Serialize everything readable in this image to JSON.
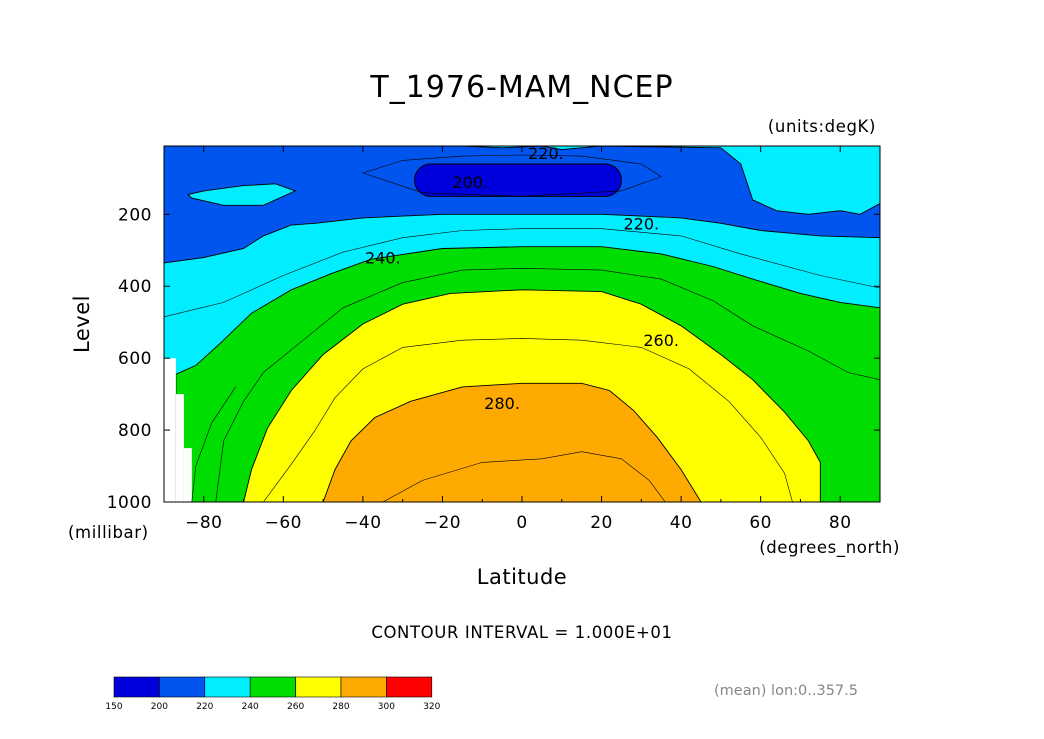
{
  "chart_data": {
    "type": "contour",
    "title": "T_1976-MAM_NCEP",
    "units_label": "(units:degK)",
    "xlabel": "Latitude",
    "x_units_label": "(degrees_north)",
    "ylabel": "Level",
    "y_units_label": "(millibar)",
    "x_range": [
      -90,
      90
    ],
    "y_range": [
      1000,
      10
    ],
    "y_axis_inverted": true,
    "x_ticks": [
      -80,
      -60,
      -40,
      -20,
      0,
      20,
      40,
      60,
      80
    ],
    "x_tick_labels": [
      "−80",
      "−60",
      "−40",
      "−20",
      "0",
      "20",
      "40",
      "60",
      "80"
    ],
    "y_ticks": [
      200,
      400,
      600,
      800,
      1000
    ],
    "y_tick_labels": [
      "200",
      "400",
      "600",
      "800",
      "1000"
    ],
    "contour_interval_text": "CONTOUR INTERVAL = 1.000E+01",
    "contour_labels": [
      {
        "text": "220.",
        "lat": 6,
        "lev": 30
      },
      {
        "text": "200.",
        "lat": -13,
        "lev": 110
      },
      {
        "text": "220.",
        "lat": 30,
        "lev": 225
      },
      {
        "text": "240.",
        "lat": -35,
        "lev": 320
      },
      {
        "text": "260.",
        "lat": 35,
        "lev": 550
      },
      {
        "text": "280.",
        "lat": -5,
        "lev": 725
      }
    ],
    "fill_levels": [
      {
        "range": [
          150,
          200
        ],
        "color": "#0000dd"
      },
      {
        "range": [
          200,
          220
        ],
        "color": "#0055ee"
      },
      {
        "range": [
          220,
          240
        ],
        "color": "#00eeff"
      },
      {
        "range": [
          240,
          260
        ],
        "color": "#00dd00"
      },
      {
        "range": [
          260,
          280
        ],
        "color": "#ffff00"
      },
      {
        "range": [
          280,
          300
        ],
        "color": "#ffaa00"
      },
      {
        "range": [
          300,
          320
        ],
        "color": "#ff0000"
      }
    ],
    "colorbar_ticks": [
      "150",
      "200",
      "220",
      "240",
      "260",
      "280",
      "300",
      "320"
    ],
    "regions": [
      {
        "name": "band-200-220",
        "level": 200,
        "color": "#0055ee",
        "points": [
          [
            -90,
            10
          ],
          [
            90,
            10
          ],
          [
            90,
            335
          ],
          [
            -90,
            335
          ]
        ]
      },
      {
        "name": "band-220-240-top",
        "level": 220,
        "color": "#00eeff",
        "points": [
          [
            -90,
            10
          ],
          [
            -15,
            10
          ],
          [
            -5,
            15
          ],
          [
            5,
            10
          ],
          [
            10,
            20
          ],
          [
            20,
            10
          ],
          [
            50,
            15
          ],
          [
            55,
            60
          ],
          [
            58,
            160
          ],
          [
            64,
            190
          ],
          [
            72,
            200
          ],
          [
            80,
            190
          ],
          [
            85,
            200
          ],
          [
            90,
            170
          ],
          [
            90,
            10
          ]
        ]
      },
      {
        "name": "band-220-240-islet",
        "level": 220,
        "color": "#00eeff",
        "points": [
          [
            -84,
            145
          ],
          [
            -80,
            135
          ],
          [
            -70,
            120
          ],
          [
            -62,
            115
          ],
          [
            -57,
            135
          ],
          [
            -65,
            175
          ],
          [
            -75,
            175
          ],
          [
            -83,
            155
          ]
        ]
      },
      {
        "name": "band-220-240",
        "level": 220,
        "color": "#00eeff",
        "points": [
          [
            -90,
            335
          ],
          [
            -80,
            320
          ],
          [
            -70,
            295
          ],
          [
            -65,
            260
          ],
          [
            -58,
            230
          ],
          [
            -52,
            225
          ],
          [
            -40,
            210
          ],
          [
            -20,
            200
          ],
          [
            0,
            200
          ],
          [
            20,
            200
          ],
          [
            40,
            210
          ],
          [
            50,
            225
          ],
          [
            60,
            245
          ],
          [
            75,
            260
          ],
          [
            90,
            265
          ],
          [
            90,
            1000
          ],
          [
            -90,
            1000
          ]
        ]
      },
      {
        "name": "band-240-260",
        "level": 240,
        "color": "#00dd00",
        "points": [
          [
            -87,
            645
          ],
          [
            -82,
            620
          ],
          [
            -76,
            560
          ],
          [
            -68,
            475
          ],
          [
            -58,
            410
          ],
          [
            -48,
            365
          ],
          [
            -38,
            325
          ],
          [
            -20,
            295
          ],
          [
            0,
            290
          ],
          [
            20,
            290
          ],
          [
            35,
            310
          ],
          [
            48,
            345
          ],
          [
            58,
            380
          ],
          [
            70,
            420
          ],
          [
            80,
            445
          ],
          [
            90,
            460
          ],
          [
            90,
            1000
          ],
          [
            -87,
            1000
          ]
        ]
      },
      {
        "name": "band-260-280",
        "level": 260,
        "color": "#ffff00",
        "points": [
          [
            -70,
            1000
          ],
          [
            -68,
            910
          ],
          [
            -64,
            795
          ],
          [
            -58,
            690
          ],
          [
            -50,
            590
          ],
          [
            -40,
            505
          ],
          [
            -30,
            450
          ],
          [
            -18,
            420
          ],
          [
            0,
            410
          ],
          [
            20,
            415
          ],
          [
            30,
            450
          ],
          [
            40,
            510
          ],
          [
            50,
            590
          ],
          [
            58,
            660
          ],
          [
            66,
            750
          ],
          [
            72,
            830
          ],
          [
            75,
            890
          ],
          [
            75,
            1000
          ]
        ]
      },
      {
        "name": "band-280-300",
        "level": 280,
        "color": "#ffaa00",
        "points": [
          [
            -50,
            1000
          ],
          [
            -47,
            910
          ],
          [
            -43,
            830
          ],
          [
            -37,
            765
          ],
          [
            -28,
            720
          ],
          [
            -15,
            680
          ],
          [
            0,
            670
          ],
          [
            15,
            670
          ],
          [
            22,
            690
          ],
          [
            28,
            745
          ],
          [
            34,
            820
          ],
          [
            40,
            910
          ],
          [
            45,
            1000
          ]
        ]
      },
      {
        "name": "missing-1",
        "level": null,
        "color": "#ffffff",
        "points": [
          [
            -90,
            600
          ],
          [
            -87,
            600
          ],
          [
            -87,
            1000
          ],
          [
            -90,
            1000
          ]
        ]
      },
      {
        "name": "missing-2",
        "level": null,
        "color": "#ffffff",
        "points": [
          [
            -87,
            700
          ],
          [
            -85,
            700
          ],
          [
            -85,
            1000
          ],
          [
            -87,
            1000
          ]
        ]
      },
      {
        "name": "missing-3",
        "level": null,
        "color": "#ffffff",
        "points": [
          [
            -85,
            850
          ],
          [
            -83,
            850
          ],
          [
            -83,
            1000
          ],
          [
            -85,
            1000
          ]
        ]
      }
    ],
    "contour_lines": [
      {
        "name": "line-210",
        "level": 210,
        "points": [
          [
            -40,
            85
          ],
          [
            -30,
            50
          ],
          [
            -15,
            38
          ],
          [
            0,
            35
          ],
          [
            15,
            38
          ],
          [
            30,
            60
          ],
          [
            35,
            95
          ],
          [
            25,
            135
          ],
          [
            0,
            150
          ],
          [
            -25,
            140
          ],
          [
            -40,
            85
          ]
        ]
      },
      {
        "name": "line-230",
        "level": 230,
        "points": [
          [
            -90,
            485
          ],
          [
            -75,
            445
          ],
          [
            -60,
            370
          ],
          [
            -45,
            305
          ],
          [
            -30,
            265
          ],
          [
            -15,
            245
          ],
          [
            0,
            240
          ],
          [
            20,
            240
          ],
          [
            40,
            260
          ],
          [
            55,
            310
          ],
          [
            75,
            370
          ],
          [
            90,
            405
          ]
        ]
      },
      {
        "name": "line-250",
        "level": 250,
        "points": [
          [
            -77,
            1000
          ],
          [
            -75,
            830
          ],
          [
            -70,
            720
          ],
          [
            -65,
            640
          ],
          [
            -55,
            550
          ],
          [
            -45,
            460
          ],
          [
            -30,
            390
          ],
          [
            -15,
            355
          ],
          [
            0,
            350
          ],
          [
            20,
            355
          ],
          [
            35,
            380
          ],
          [
            48,
            440
          ],
          [
            58,
            510
          ],
          [
            72,
            580
          ],
          [
            82,
            640
          ],
          [
            90,
            660
          ]
        ]
      },
      {
        "name": "line-270",
        "level": 270,
        "points": [
          [
            -65,
            1000
          ],
          [
            -58,
            895
          ],
          [
            -52,
            800
          ],
          [
            -47,
            710
          ],
          [
            -40,
            630
          ],
          [
            -30,
            570
          ],
          [
            -15,
            550
          ],
          [
            0,
            545
          ],
          [
            15,
            550
          ],
          [
            30,
            570
          ],
          [
            42,
            630
          ],
          [
            52,
            720
          ],
          [
            60,
            820
          ],
          [
            66,
            920
          ],
          [
            68,
            1000
          ]
        ]
      },
      {
        "name": "line-290",
        "level": 290,
        "points": [
          [
            -35,
            1000
          ],
          [
            -25,
            940
          ],
          [
            -10,
            890
          ],
          [
            5,
            880
          ],
          [
            15,
            860
          ],
          [
            25,
            880
          ],
          [
            32,
            940
          ],
          [
            36,
            1000
          ]
        ]
      },
      {
        "name": "line-260-extra",
        "level": 260,
        "points": [
          [
            -83,
            1000
          ],
          [
            -82,
            900
          ],
          [
            -78,
            780
          ],
          [
            -72,
            680
          ]
        ]
      }
    ],
    "annotation": "(mean) lon:0..357.5"
  }
}
